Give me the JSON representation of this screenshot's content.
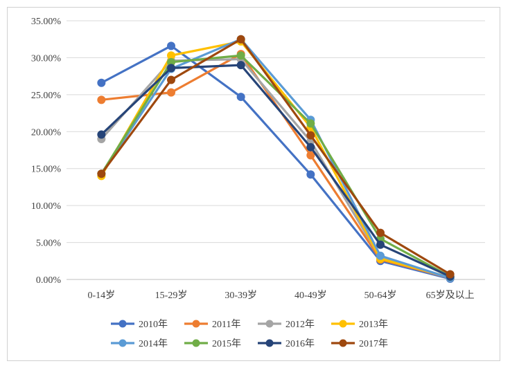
{
  "chart_data": {
    "type": "line",
    "title": "",
    "xlabel": "",
    "ylabel": "",
    "categories": [
      "0-14岁",
      "15-29岁",
      "30-39岁",
      "40-49岁",
      "50-64岁",
      "65岁及以上"
    ],
    "y_ticks": [
      "0.00%",
      "5.00%",
      "10.00%",
      "15.00%",
      "20.00%",
      "25.00%",
      "30.00%",
      "35.00%"
    ],
    "ylim": [
      0,
      35
    ],
    "y_unit": "%",
    "grid": true,
    "legend_position": "bottom",
    "series": [
      {
        "name": "2010年",
        "color": "#4472C4",
        "values": [
          26.6,
          31.6,
          24.7,
          14.2,
          2.5,
          0.1
        ]
      },
      {
        "name": "2011年",
        "color": "#ED7D31",
        "values": [
          24.3,
          25.3,
          30.5,
          16.8,
          2.7,
          0.2
        ]
      },
      {
        "name": "2012年",
        "color": "#A5A5A5",
        "values": [
          19.0,
          29.6,
          29.8,
          18.7,
          2.9,
          0.2
        ]
      },
      {
        "name": "2013年",
        "color": "#FFC000",
        "values": [
          14.0,
          30.3,
          32.2,
          20.6,
          2.8,
          0.3
        ]
      },
      {
        "name": "2014年",
        "color": "#5B9BD5",
        "values": [
          14.3,
          28.5,
          32.5,
          21.6,
          3.2,
          0.2
        ]
      },
      {
        "name": "2015年",
        "color": "#70AD47",
        "values": [
          14.3,
          29.4,
          30.3,
          21.1,
          5.5,
          0.4
        ]
      },
      {
        "name": "2016年",
        "color": "#264478",
        "values": [
          19.6,
          28.6,
          29.0,
          17.9,
          4.7,
          0.4
        ]
      },
      {
        "name": "2017年",
        "color": "#9E480E",
        "values": [
          14.3,
          27.0,
          32.5,
          19.5,
          6.3,
          0.7
        ]
      }
    ]
  }
}
